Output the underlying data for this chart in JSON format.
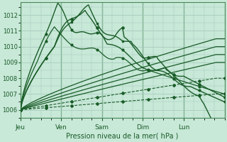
{
  "xlabel": "Pression niveau de la mer( hPa )",
  "background_color": "#c8e8d8",
  "plot_bg_color": "#c8e8d8",
  "grid_color": "#a0c8b8",
  "line_color": "#1a5c28",
  "ylim": [
    1005.5,
    1012.8
  ],
  "yticks": [
    1006,
    1007,
    1008,
    1009,
    1010,
    1011,
    1012
  ],
  "day_labels": [
    "Jeu",
    "Ven",
    "Sam",
    "Dim",
    "Lun"
  ],
  "day_positions": [
    0,
    24,
    48,
    72,
    96
  ],
  "xlim": [
    0,
    120
  ],
  "figsize": [
    3.2,
    2.0
  ],
  "dpi": 100
}
